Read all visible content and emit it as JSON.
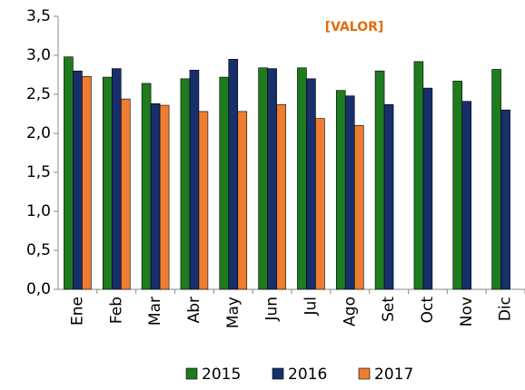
{
  "chart_data": {
    "type": "bar",
    "annotation": "[VALOR]",
    "categories": [
      "Ene",
      "Feb",
      "Mar",
      "Abr",
      "May",
      "Jun",
      "Jul",
      "Ago",
      "Set",
      "Oct",
      "Nov",
      "Dic"
    ],
    "series": [
      {
        "name": "2015",
        "color": "#1e7b1e",
        "values": [
          2.98,
          2.72,
          2.64,
          2.7,
          2.72,
          2.84,
          2.84,
          2.55,
          2.8,
          2.92,
          2.67,
          2.82
        ]
      },
      {
        "name": "2016",
        "color": "#172f6b",
        "values": [
          2.8,
          2.83,
          2.38,
          2.81,
          2.95,
          2.83,
          2.7,
          2.48,
          2.37,
          2.58,
          2.41,
          2.3
        ]
      },
      {
        "name": "2017",
        "color": "#ed7d31",
        "values": [
          2.73,
          2.44,
          2.36,
          2.28,
          2.28,
          2.37,
          2.19,
          2.1,
          null,
          null,
          null,
          null
        ]
      }
    ],
    "ylim": [
      0,
      3.5
    ],
    "yticks": [
      {
        "value": 0,
        "label": "0,0"
      },
      {
        "value": 0.5,
        "label": "0,5"
      },
      {
        "value": 1,
        "label": "1,0"
      },
      {
        "value": 1.5,
        "label": "1,5"
      },
      {
        "value": 2,
        "label": "2,0"
      },
      {
        "value": 2.5,
        "label": "2,5"
      },
      {
        "value": 3,
        "label": "3,0"
      },
      {
        "value": 3.5,
        "label": "3,5"
      }
    ],
    "legend": "bottom"
  }
}
